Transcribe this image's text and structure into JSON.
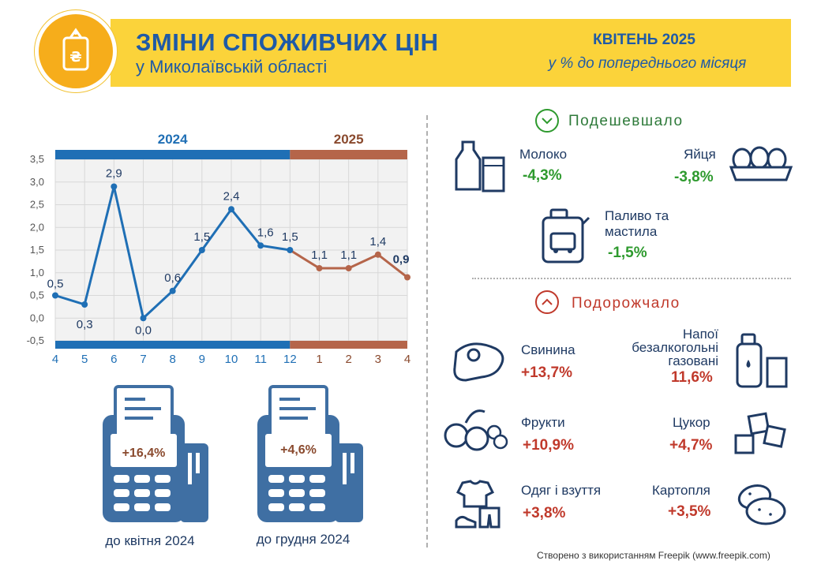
{
  "header": {
    "title": "ЗМІНИ СПОЖИВЧИХ ЦІН",
    "subtitle": "у Миколаївській області",
    "month": "КВІТЕНЬ 2025",
    "unit": "у % до попереднього місяця"
  },
  "colors": {
    "blue": "#1f6fb5",
    "brown": "#b5654a",
    "yellow": "#fbd33a",
    "orange": "#f6ad1b",
    "green": "#2e9a2e",
    "red": "#c0392b"
  },
  "chart_data": {
    "type": "line",
    "years": [
      "2024",
      "2025"
    ],
    "categories": [
      "4",
      "5",
      "6",
      "7",
      "8",
      "9",
      "10",
      "11",
      "12",
      "1",
      "2",
      "3",
      "4"
    ],
    "values": [
      0.5,
      0.3,
      2.9,
      0.0,
      0.6,
      1.5,
      2.4,
      1.6,
      1.5,
      1.1,
      1.1,
      1.4,
      0.9
    ],
    "value_labels": [
      "0,5",
      "0,3",
      "2,9",
      "0,0",
      "0,6",
      "1,5",
      "2,4",
      "1,6",
      "1,5",
      "1,1",
      "1,1",
      "1,4",
      "0,9"
    ],
    "y_ticks": [
      "3,5",
      "3,0",
      "2,5",
      "2,0",
      "1,5",
      "1,0",
      "0,5",
      "0,0",
      "-0,5"
    ],
    "ylim": [
      -0.5,
      3.5
    ],
    "grid": true
  },
  "terminals": [
    {
      "value": "+16,4%",
      "label": "до квітня 2024"
    },
    {
      "value": "+4,6%",
      "label": "до грудня 2024"
    }
  ],
  "cheaper": {
    "heading": "Подешевшало",
    "items": [
      {
        "name": "Молоко",
        "value": "-4,3%",
        "icon": "milk-icon"
      },
      {
        "name": "Яйця",
        "value": "-3,8%",
        "icon": "eggs-icon"
      },
      {
        "name_line1": "Паливо та",
        "name_line2": "мастила",
        "value": "-1,5%",
        "icon": "fuel-canister-icon"
      }
    ]
  },
  "pricier": {
    "heading": "Подорожчало",
    "items": [
      {
        "name": "Свинина",
        "value": "+13,7%",
        "icon": "meat-icon"
      },
      {
        "name_line1": "Напої",
        "name_line2": "безалкогольні",
        "name_line3": "газовані",
        "value": "11,6%",
        "icon": "drinks-icon"
      },
      {
        "name": "Фрукти",
        "value": "+10,9%",
        "icon": "fruits-icon"
      },
      {
        "name": "Цукор",
        "value": "+4,7%",
        "icon": "sugar-icon"
      },
      {
        "name": "Одяг і взуття",
        "value": "+3,8%",
        "icon": "clothes-icon"
      },
      {
        "name": "Картопля",
        "value": "+3,5%",
        "icon": "potato-icon"
      }
    ]
  },
  "credit": "Створено з використанням Freepik (www.freepik.com)"
}
